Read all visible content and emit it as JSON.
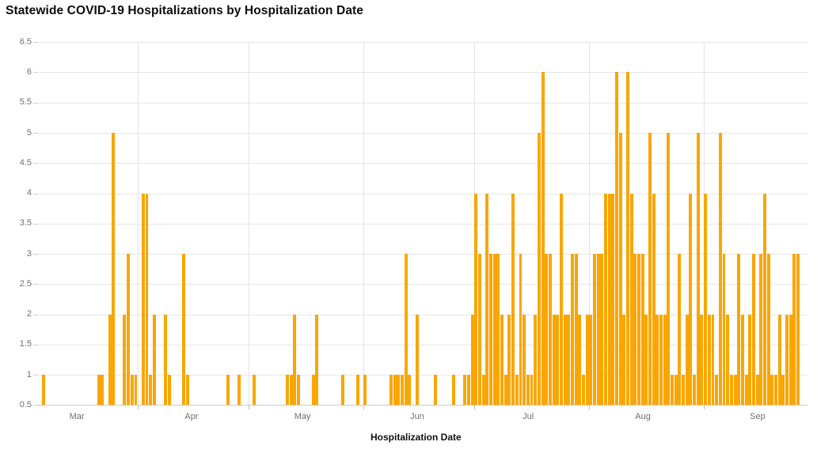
{
  "header": {
    "title": "Statewide COVID-19 Hospitalizations by Hospitalization Date"
  },
  "chart_data": {
    "type": "bar",
    "title": "Statewide COVID-19 Hospitalizations by Hospitalization Date",
    "xlabel": "Hospitalization Date",
    "ylabel": "",
    "ylim": [
      0.5,
      6.5
    ],
    "grid": "horizontal and month-boundary vertical gridlines",
    "legend": "none",
    "bar_color": "#f9a602",
    "y_tick_labels": [
      "0.5",
      "1",
      "1.5",
      "2",
      "2.5",
      "3",
      "3.5",
      "4",
      "4.5",
      "5",
      "5.5",
      "6",
      "6.5"
    ],
    "x_month_labels": [
      "Mar",
      "Apr",
      "May",
      "Jun",
      "Jul",
      "Aug",
      "Sep"
    ],
    "x_axis_start": "Mar 5",
    "x_axis_end": "Sep 28",
    "note": "daily bars; dates not listed below have value 0",
    "series": [
      {
        "date": "Mar 6",
        "value": 1
      },
      {
        "date": "Mar 21",
        "value": 1
      },
      {
        "date": "Mar 22",
        "value": 1
      },
      {
        "date": "Mar 24",
        "value": 2
      },
      {
        "date": "Mar 25",
        "value": 5
      },
      {
        "date": "Mar 28",
        "value": 2
      },
      {
        "date": "Mar 29",
        "value": 3
      },
      {
        "date": "Mar 30",
        "value": 1
      },
      {
        "date": "Mar 31",
        "value": 1
      },
      {
        "date": "Apr 2",
        "value": 4
      },
      {
        "date": "Apr 3",
        "value": 4
      },
      {
        "date": "Apr 4",
        "value": 1
      },
      {
        "date": "Apr 5",
        "value": 2
      },
      {
        "date": "Apr 8",
        "value": 2
      },
      {
        "date": "Apr 9",
        "value": 1
      },
      {
        "date": "Apr 13",
        "value": 3
      },
      {
        "date": "Apr 14",
        "value": 1
      },
      {
        "date": "Apr 25",
        "value": 1
      },
      {
        "date": "Apr 28",
        "value": 1
      },
      {
        "date": "May 2",
        "value": 1
      },
      {
        "date": "May 11",
        "value": 1
      },
      {
        "date": "May 12",
        "value": 1
      },
      {
        "date": "May 13",
        "value": 2
      },
      {
        "date": "May 14",
        "value": 1
      },
      {
        "date": "May 18",
        "value": 1
      },
      {
        "date": "May 19",
        "value": 2
      },
      {
        "date": "May 26",
        "value": 1
      },
      {
        "date": "May 30",
        "value": 1
      },
      {
        "date": "Jun 1",
        "value": 1
      },
      {
        "date": "Jun 8",
        "value": 1
      },
      {
        "date": "Jun 9",
        "value": 1
      },
      {
        "date": "Jun 10",
        "value": 1
      },
      {
        "date": "Jun 11",
        "value": 1
      },
      {
        "date": "Jun 12",
        "value": 3
      },
      {
        "date": "Jun 13",
        "value": 1
      },
      {
        "date": "Jun 15",
        "value": 2
      },
      {
        "date": "Jun 20",
        "value": 1
      },
      {
        "date": "Jun 25",
        "value": 1
      },
      {
        "date": "Jun 28",
        "value": 1
      },
      {
        "date": "Jun 29",
        "value": 1
      },
      {
        "date": "Jun 30",
        "value": 2
      },
      {
        "date": "Jul 1",
        "value": 4
      },
      {
        "date": "Jul 2",
        "value": 3
      },
      {
        "date": "Jul 3",
        "value": 1
      },
      {
        "date": "Jul 4",
        "value": 4
      },
      {
        "date": "Jul 5",
        "value": 3
      },
      {
        "date": "Jul 6",
        "value": 3
      },
      {
        "date": "Jul 7",
        "value": 3
      },
      {
        "date": "Jul 8",
        "value": 2
      },
      {
        "date": "Jul 9",
        "value": 1
      },
      {
        "date": "Jul 10",
        "value": 2
      },
      {
        "date": "Jul 11",
        "value": 4
      },
      {
        "date": "Jul 12",
        "value": 1
      },
      {
        "date": "Jul 13",
        "value": 3
      },
      {
        "date": "Jul 14",
        "value": 2
      },
      {
        "date": "Jul 15",
        "value": 1
      },
      {
        "date": "Jul 16",
        "value": 1
      },
      {
        "date": "Jul 17",
        "value": 2
      },
      {
        "date": "Jul 18",
        "value": 5
      },
      {
        "date": "Jul 19",
        "value": 6
      },
      {
        "date": "Jul 20",
        "value": 3
      },
      {
        "date": "Jul 21",
        "value": 3
      },
      {
        "date": "Jul 22",
        "value": 2
      },
      {
        "date": "Jul 23",
        "value": 2
      },
      {
        "date": "Jul 24",
        "value": 4
      },
      {
        "date": "Jul 25",
        "value": 2
      },
      {
        "date": "Jul 26",
        "value": 2
      },
      {
        "date": "Jul 27",
        "value": 3
      },
      {
        "date": "Jul 28",
        "value": 3
      },
      {
        "date": "Jul 29",
        "value": 2
      },
      {
        "date": "Jul 30",
        "value": 1
      },
      {
        "date": "Jul 31",
        "value": 2
      },
      {
        "date": "Aug 1",
        "value": 2
      },
      {
        "date": "Aug 2",
        "value": 3
      },
      {
        "date": "Aug 3",
        "value": 3
      },
      {
        "date": "Aug 4",
        "value": 3
      },
      {
        "date": "Aug 5",
        "value": 4
      },
      {
        "date": "Aug 6",
        "value": 4
      },
      {
        "date": "Aug 7",
        "value": 4
      },
      {
        "date": "Aug 8",
        "value": 6
      },
      {
        "date": "Aug 9",
        "value": 5
      },
      {
        "date": "Aug 10",
        "value": 2
      },
      {
        "date": "Aug 11",
        "value": 6
      },
      {
        "date": "Aug 12",
        "value": 4
      },
      {
        "date": "Aug 13",
        "value": 3
      },
      {
        "date": "Aug 14",
        "value": 3
      },
      {
        "date": "Aug 15",
        "value": 3
      },
      {
        "date": "Aug 16",
        "value": 2
      },
      {
        "date": "Aug 17",
        "value": 5
      },
      {
        "date": "Aug 18",
        "value": 4
      },
      {
        "date": "Aug 19",
        "value": 2
      },
      {
        "date": "Aug 20",
        "value": 2
      },
      {
        "date": "Aug 21",
        "value": 2
      },
      {
        "date": "Aug 22",
        "value": 5
      },
      {
        "date": "Aug 23",
        "value": 1
      },
      {
        "date": "Aug 24",
        "value": 1
      },
      {
        "date": "Aug 25",
        "value": 3
      },
      {
        "date": "Aug 26",
        "value": 1
      },
      {
        "date": "Aug 27",
        "value": 2
      },
      {
        "date": "Aug 28",
        "value": 4
      },
      {
        "date": "Aug 29",
        "value": 1
      },
      {
        "date": "Aug 30",
        "value": 5
      },
      {
        "date": "Aug 31",
        "value": 2
      },
      {
        "date": "Sep 1",
        "value": 4
      },
      {
        "date": "Sep 2",
        "value": 2
      },
      {
        "date": "Sep 3",
        "value": 2
      },
      {
        "date": "Sep 4",
        "value": 1
      },
      {
        "date": "Sep 5",
        "value": 5
      },
      {
        "date": "Sep 6",
        "value": 3
      },
      {
        "date": "Sep 7",
        "value": 2
      },
      {
        "date": "Sep 8",
        "value": 1
      },
      {
        "date": "Sep 9",
        "value": 1
      },
      {
        "date": "Sep 10",
        "value": 3
      },
      {
        "date": "Sep 11",
        "value": 2
      },
      {
        "date": "Sep 12",
        "value": 1
      },
      {
        "date": "Sep 13",
        "value": 2
      },
      {
        "date": "Sep 14",
        "value": 3
      },
      {
        "date": "Sep 15",
        "value": 1
      },
      {
        "date": "Sep 16",
        "value": 3
      },
      {
        "date": "Sep 17",
        "value": 4
      },
      {
        "date": "Sep 18",
        "value": 3
      },
      {
        "date": "Sep 19",
        "value": 1
      },
      {
        "date": "Sep 20",
        "value": 1
      },
      {
        "date": "Sep 21",
        "value": 2
      },
      {
        "date": "Sep 22",
        "value": 1
      },
      {
        "date": "Sep 23",
        "value": 2
      },
      {
        "date": "Sep 24",
        "value": 2
      },
      {
        "date": "Sep 25",
        "value": 3
      },
      {
        "date": "Sep 26",
        "value": 3
      }
    ]
  },
  "colors": {
    "bar": "#f9a602",
    "gridline": "#e6e6e6",
    "axis_line": "#c9c9c9",
    "tick_label": "#6f6f6f",
    "title_text": "#0c0c0c"
  }
}
